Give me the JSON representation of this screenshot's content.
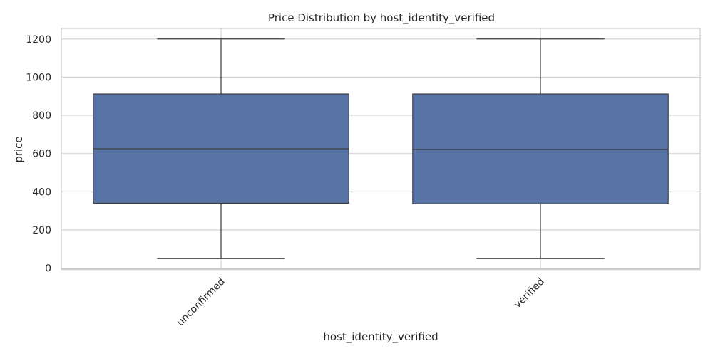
{
  "chart_data": {
    "type": "box",
    "title": "Price Distribution by host_identity_verified",
    "xlabel": "host_identity_verified",
    "ylabel": "price",
    "categories": [
      "unconfirmed",
      "verified"
    ],
    "boxes": [
      {
        "category": "unconfirmed",
        "min": 50,
        "q1": 340,
        "median": 625,
        "q3": 912,
        "max": 1200
      },
      {
        "category": "verified",
        "min": 50,
        "q1": 337,
        "median": 622,
        "q3": 912,
        "max": 1200
      }
    ],
    "yticks": [
      0,
      200,
      400,
      600,
      800,
      1000,
      1200
    ],
    "ylim": [
      -5,
      1255
    ],
    "grid": true,
    "x_tick_rotation_deg": 45,
    "colors": {
      "box_fill": "#5874a6",
      "line": "#3f3f3f",
      "grid": "#d4d4d4",
      "axis": "#cccccc"
    }
  }
}
